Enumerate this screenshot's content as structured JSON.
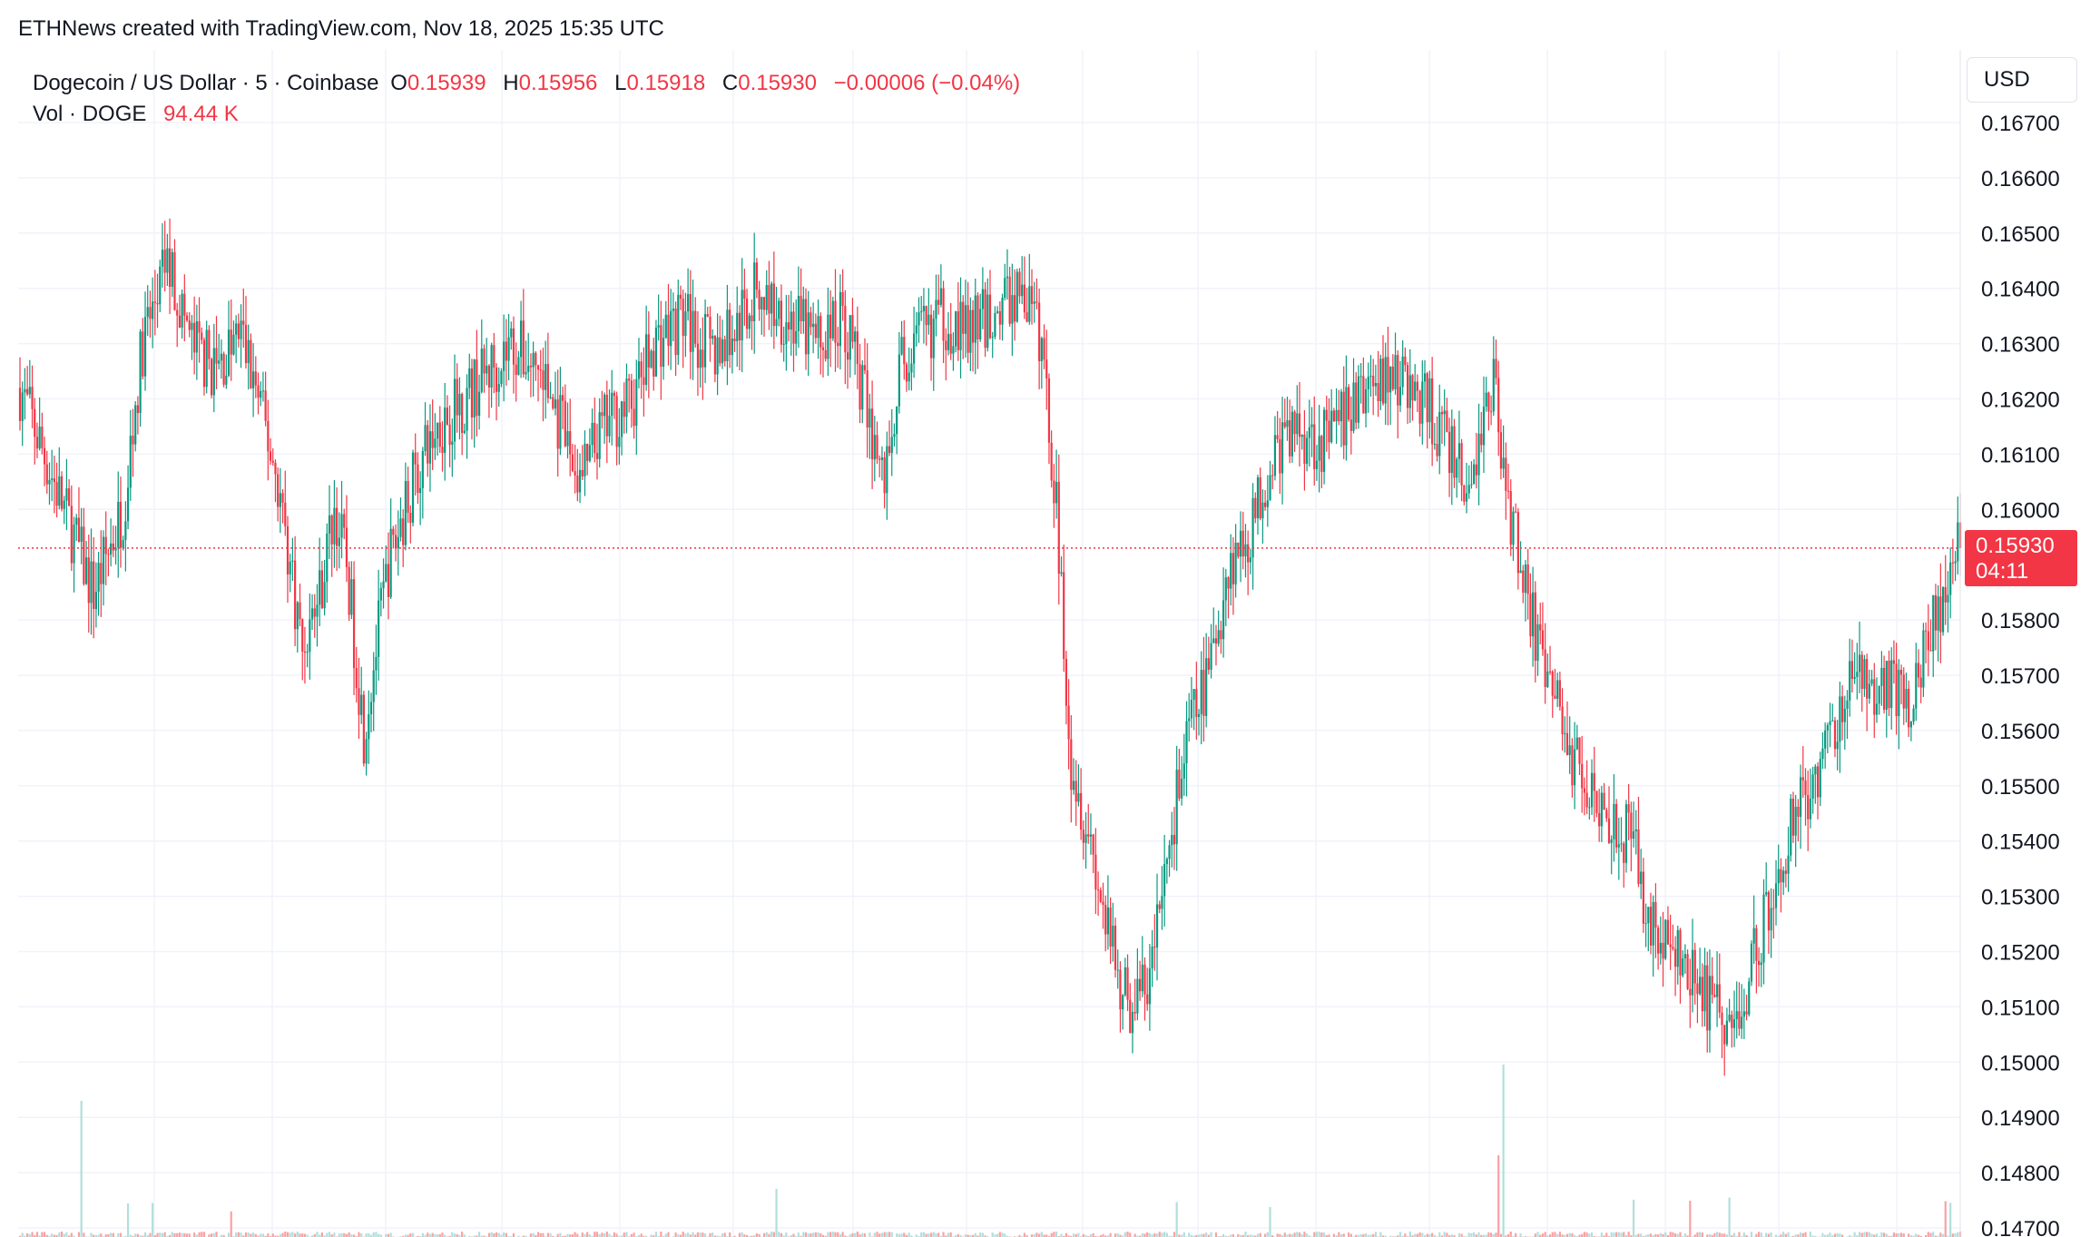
{
  "attribution": "ETHNews created with TradingView.com, Nov 18, 2025 15:35 UTC",
  "legend": {
    "symbol": "Dogecoin / US Dollar · 5 · Coinbase",
    "open_label": "O",
    "open_value": "0.15939",
    "high_label": "H",
    "high_value": "0.15956",
    "low_label": "L",
    "low_value": "0.15918",
    "close_label": "C",
    "close_value": "0.15930",
    "change": "−0.00006 (−0.04%)",
    "volume_label": "Vol · DOGE",
    "volume_value": "94.44 K"
  },
  "currency_button": "USD",
  "last_price": {
    "value": "0.15930",
    "countdown": "04:11"
  },
  "colors": {
    "up": "#089981",
    "down": "#f23645",
    "grid": "#f0f3fa",
    "volume_up": "#b2dfdb",
    "volume_down": "#faa1a4"
  },
  "chart_data": {
    "type": "candlestick",
    "symbol": "DOGE/USD",
    "interval": "5",
    "y_axis": {
      "ticks": [
        "0.16700",
        "0.16600",
        "0.16500",
        "0.16400",
        "0.16300",
        "0.16200",
        "0.16100",
        "0.16000",
        "0.15800",
        "0.15700",
        "0.15600",
        "0.15500",
        "0.15400",
        "0.15300",
        "0.15200",
        "0.15100",
        "0.15000",
        "0.14900",
        "0.14800",
        "0.14700"
      ],
      "range": [
        0.1467,
        0.1681
      ]
    },
    "grid": true,
    "last_close": 0.1593,
    "close_path": [
      [
        0,
        0.1622
      ],
      [
        18,
        0.16
      ],
      [
        30,
        0.1585
      ],
      [
        42,
        0.16
      ],
      [
        50,
        0.163
      ],
      [
        60,
        0.1645
      ],
      [
        70,
        0.163
      ],
      [
        80,
        0.1625
      ],
      [
        90,
        0.1632
      ],
      [
        97,
        0.162
      ],
      [
        105,
        0.1605
      ],
      [
        110,
        0.159
      ],
      [
        115,
        0.1575
      ],
      [
        122,
        0.1585
      ],
      [
        128,
        0.16
      ],
      [
        133,
        0.159
      ],
      [
        140,
        0.156
      ],
      [
        150,
        0.159
      ],
      [
        160,
        0.1605
      ],
      [
        170,
        0.1615
      ],
      [
        185,
        0.1622
      ],
      [
        200,
        0.163
      ],
      [
        212,
        0.1625
      ],
      [
        220,
        0.1615
      ],
      [
        228,
        0.1605
      ],
      [
        238,
        0.1615
      ],
      [
        250,
        0.162
      ],
      [
        258,
        0.163
      ],
      [
        270,
        0.1635
      ],
      [
        282,
        0.1628
      ],
      [
        290,
        0.1632
      ],
      [
        300,
        0.164
      ],
      [
        312,
        0.1635
      ],
      [
        325,
        0.163
      ],
      [
        335,
        0.1635
      ],
      [
        340,
        0.1628
      ],
      [
        346,
        0.1615
      ],
      [
        352,
        0.1605
      ],
      [
        358,
        0.1625
      ],
      [
        365,
        0.163
      ],
      [
        375,
        0.1635
      ],
      [
        386,
        0.1632
      ],
      [
        395,
        0.1635
      ],
      [
        403,
        0.1638
      ],
      [
        408,
        0.164
      ],
      [
        416,
        0.163
      ],
      [
        422,
        0.16
      ],
      [
        428,
        0.1555
      ],
      [
        436,
        0.154
      ],
      [
        444,
        0.152
      ],
      [
        452,
        0.151
      ],
      [
        460,
        0.1515
      ],
      [
        468,
        0.154
      ],
      [
        476,
        0.156
      ],
      [
        484,
        0.157
      ],
      [
        492,
        0.159
      ],
      [
        500,
        0.1595
      ],
      [
        510,
        0.161
      ],
      [
        520,
        0.1615
      ],
      [
        532,
        0.1612
      ],
      [
        545,
        0.162
      ],
      [
        556,
        0.1625
      ],
      [
        566,
        0.1622
      ],
      [
        574,
        0.1618
      ],
      [
        590,
        0.1603
      ],
      [
        600,
        0.1625
      ],
      [
        606,
        0.16
      ],
      [
        612,
        0.159
      ],
      [
        620,
        0.157
      ],
      [
        626,
        0.1565
      ],
      [
        632,
        0.1555
      ],
      [
        640,
        0.155
      ],
      [
        648,
        0.1545
      ],
      [
        656,
        0.154
      ],
      [
        664,
        0.1525
      ],
      [
        672,
        0.152
      ],
      [
        680,
        0.1515
      ],
      [
        690,
        0.151
      ],
      [
        698,
        0.1505
      ],
      [
        706,
        0.152
      ],
      [
        714,
        0.153
      ],
      [
        722,
        0.1545
      ],
      [
        730,
        0.155
      ],
      [
        738,
        0.156
      ],
      [
        748,
        0.157
      ],
      [
        758,
        0.1568
      ],
      [
        768,
        0.1565
      ],
      [
        776,
        0.1575
      ],
      [
        784,
        0.1585
      ],
      [
        790,
        0.1593
      ]
    ]
  }
}
